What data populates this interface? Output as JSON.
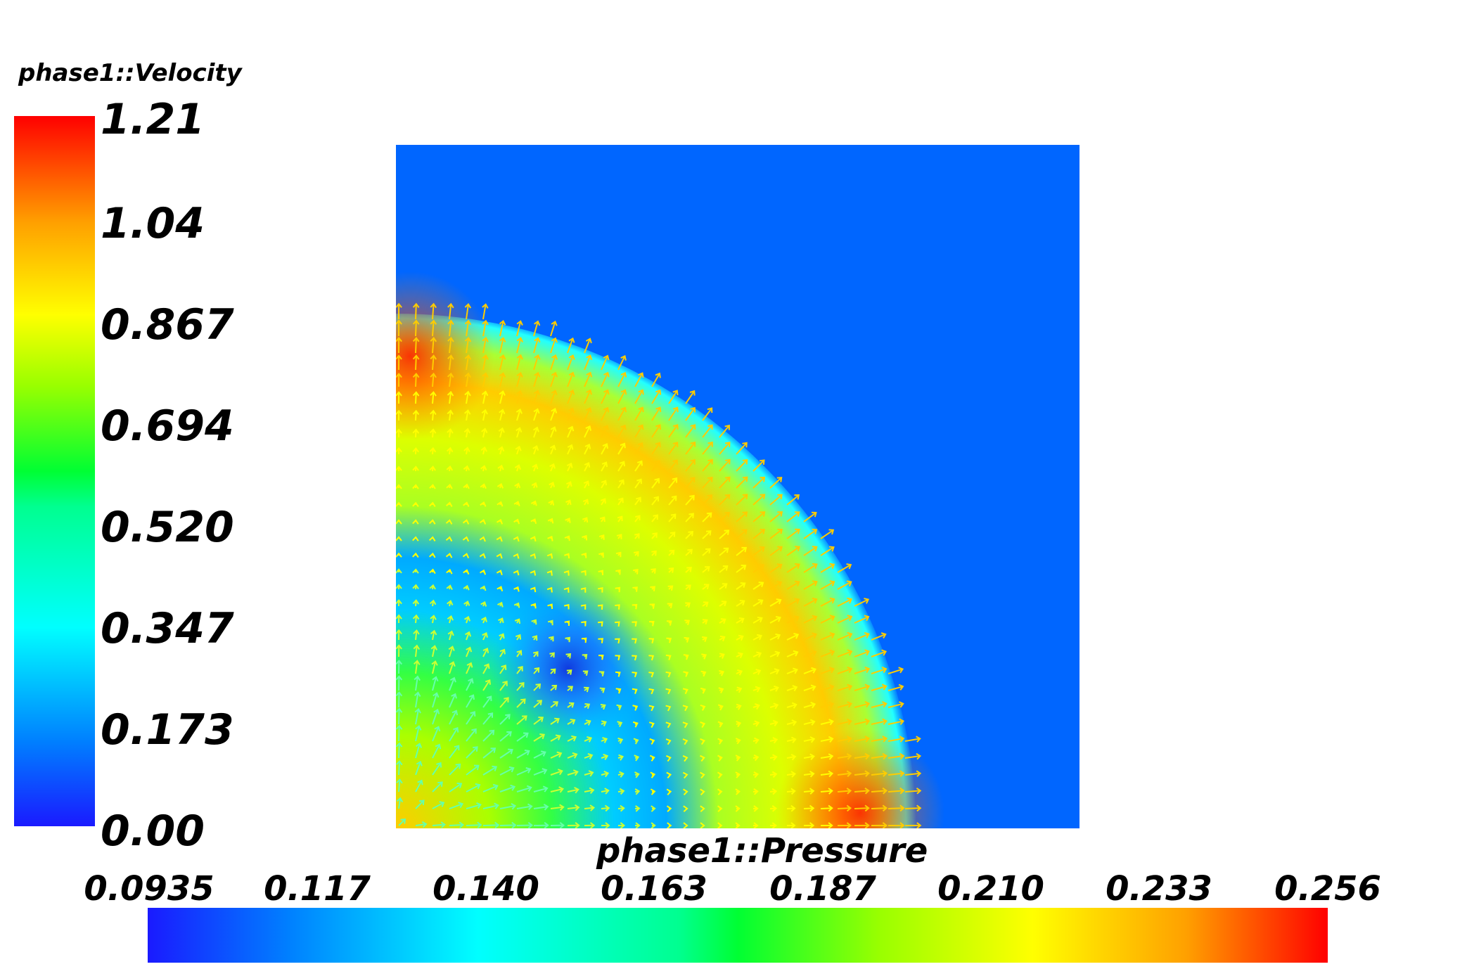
{
  "velocity_legend": {
    "title": "phase1::Velocity",
    "ticks": [
      "1.21",
      "1.04",
      "0.867",
      "0.694",
      "0.520",
      "0.347",
      "0.173",
      "0.00"
    ],
    "min": 0.0,
    "max": 1.21
  },
  "pressure_legend": {
    "title": "phase1::Pressure",
    "ticks": [
      "0.0935",
      "0.117",
      "0.140",
      "0.163",
      "0.187",
      "0.210",
      "0.233",
      "0.256"
    ],
    "min": 0.0935,
    "max": 0.256
  },
  "colors": {
    "background_field": "#0066ff",
    "colormap": [
      "#1a1aff",
      "#0080ff",
      "#00ffff",
      "#00ff80",
      "#33ff00",
      "#ccff00",
      "#ffff00",
      "#ffa000",
      "#ff3000",
      "#ff0000"
    ]
  }
}
